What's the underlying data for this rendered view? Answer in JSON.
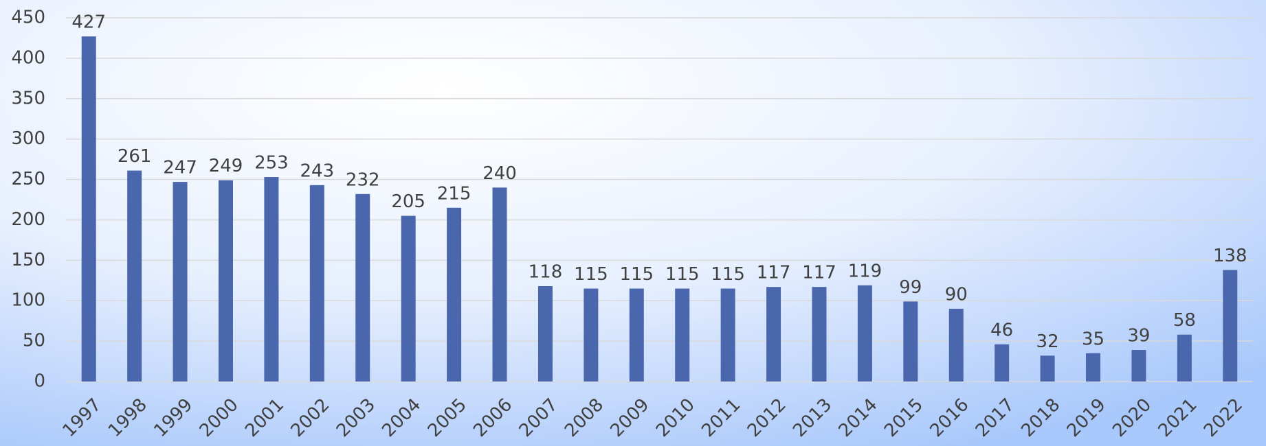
{
  "chart_data": {
    "type": "bar",
    "categories": [
      "1997",
      "1998",
      "1999",
      "2000",
      "2001",
      "2002",
      "2003",
      "2004",
      "2005",
      "2006",
      "2007",
      "2008",
      "2009",
      "2010",
      "2011",
      "2012",
      "2013",
      "2014",
      "2015",
      "2016",
      "2017",
      "2018",
      "2019",
      "2020",
      "2021",
      "2022"
    ],
    "values": [
      427,
      261,
      247,
      249,
      253,
      243,
      232,
      205,
      215,
      240,
      118,
      115,
      115,
      115,
      115,
      117,
      117,
      119,
      99,
      90,
      46,
      32,
      35,
      39,
      58,
      138
    ],
    "color": "#4a67ae",
    "ylim": [
      0,
      450
    ],
    "yticks": [
      0,
      50,
      100,
      150,
      200,
      250,
      300,
      350,
      400,
      450
    ],
    "grid": true
  }
}
